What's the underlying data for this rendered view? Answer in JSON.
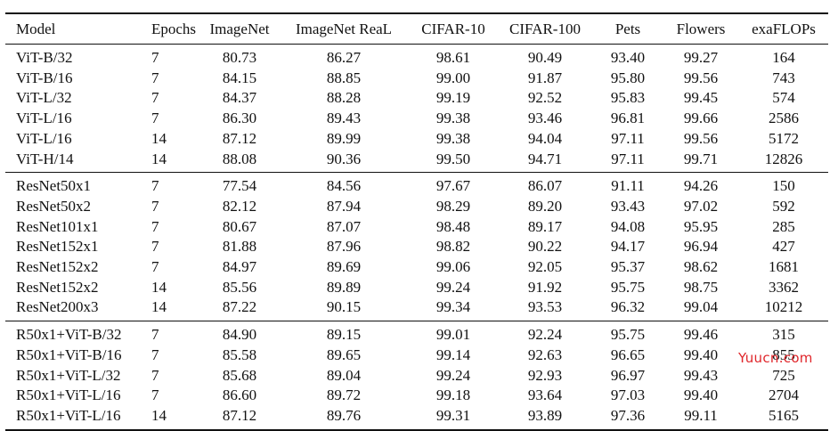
{
  "columns": [
    "Model",
    "Epochs",
    "ImageNet",
    "ImageNet ReaL",
    "CIFAR-10",
    "CIFAR-100",
    "Pets",
    "Flowers",
    "exaFLOPs"
  ],
  "groups": [
    [
      [
        "ViT-B/32",
        "7",
        "80.73",
        "86.27",
        "98.61",
        "90.49",
        "93.40",
        "99.27",
        "164"
      ],
      [
        "ViT-B/16",
        "7",
        "84.15",
        "88.85",
        "99.00",
        "91.87",
        "95.80",
        "99.56",
        "743"
      ],
      [
        "ViT-L/32",
        "7",
        "84.37",
        "88.28",
        "99.19",
        "92.52",
        "95.83",
        "99.45",
        "574"
      ],
      [
        "ViT-L/16",
        "7",
        "86.30",
        "89.43",
        "99.38",
        "93.46",
        "96.81",
        "99.66",
        "2586"
      ],
      [
        "ViT-L/16",
        "14",
        "87.12",
        "89.99",
        "99.38",
        "94.04",
        "97.11",
        "99.56",
        "5172"
      ],
      [
        "ViT-H/14",
        "14",
        "88.08",
        "90.36",
        "99.50",
        "94.71",
        "97.11",
        "99.71",
        "12826"
      ]
    ],
    [
      [
        "ResNet50x1",
        "7",
        "77.54",
        "84.56",
        "97.67",
        "86.07",
        "91.11",
        "94.26",
        "150"
      ],
      [
        "ResNet50x2",
        "7",
        "82.12",
        "87.94",
        "98.29",
        "89.20",
        "93.43",
        "97.02",
        "592"
      ],
      [
        "ResNet101x1",
        "7",
        "80.67",
        "87.07",
        "98.48",
        "89.17",
        "94.08",
        "95.95",
        "285"
      ],
      [
        "ResNet152x1",
        "7",
        "81.88",
        "87.96",
        "98.82",
        "90.22",
        "94.17",
        "96.94",
        "427"
      ],
      [
        "ResNet152x2",
        "7",
        "84.97",
        "89.69",
        "99.06",
        "92.05",
        "95.37",
        "98.62",
        "1681"
      ],
      [
        "ResNet152x2",
        "14",
        "85.56",
        "89.89",
        "99.24",
        "91.92",
        "95.75",
        "98.75",
        "3362"
      ],
      [
        "ResNet200x3",
        "14",
        "87.22",
        "90.15",
        "99.34",
        "93.53",
        "96.32",
        "99.04",
        "10212"
      ]
    ],
    [
      [
        "R50x1+ViT-B/32",
        "7",
        "84.90",
        "89.15",
        "99.01",
        "92.24",
        "95.75",
        "99.46",
        "315"
      ],
      [
        "R50x1+ViT-B/16",
        "7",
        "85.58",
        "89.65",
        "99.14",
        "92.63",
        "96.65",
        "99.40",
        "855"
      ],
      [
        "R50x1+ViT-L/32",
        "7",
        "85.68",
        "89.04",
        "99.24",
        "92.93",
        "96.97",
        "99.43",
        "725"
      ],
      [
        "R50x1+ViT-L/16",
        "7",
        "86.60",
        "89.72",
        "99.18",
        "93.64",
        "97.03",
        "99.40",
        "2704"
      ],
      [
        "R50x1+ViT-L/16",
        "14",
        "87.12",
        "89.76",
        "99.31",
        "93.89",
        "97.36",
        "99.11",
        "5165"
      ]
    ]
  ],
  "watermark": "Yuucn.com"
}
